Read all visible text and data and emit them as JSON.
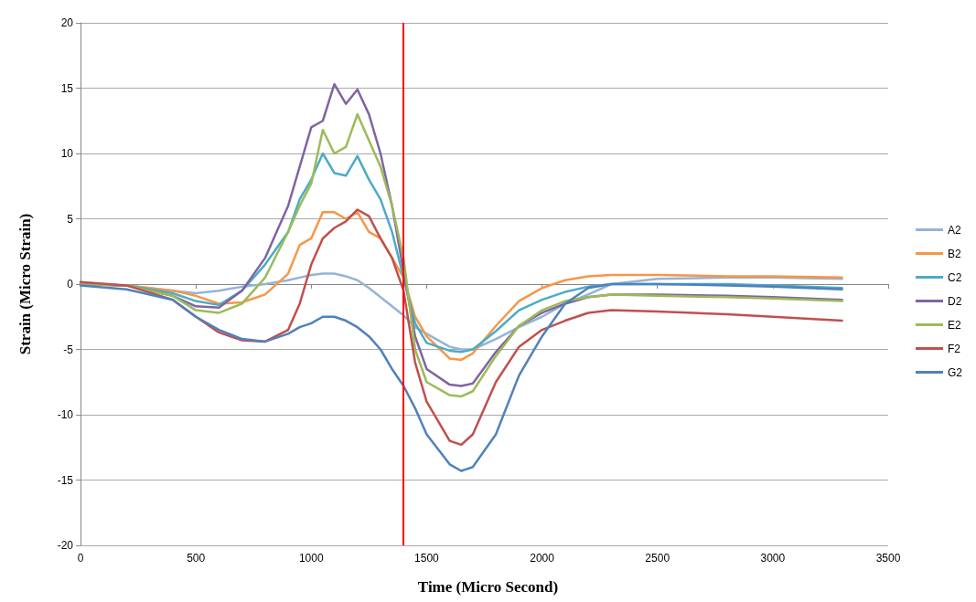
{
  "chart_data": {
    "type": "line",
    "xlabel": "Time (Micro Second)",
    "ylabel": "Strain (Micro Strain)",
    "x": [
      0,
      200,
      400,
      500,
      600,
      700,
      800,
      900,
      950,
      1000,
      1050,
      1100,
      1150,
      1200,
      1250,
      1300,
      1350,
      1400,
      1450,
      1500,
      1600,
      1650,
      1700,
      1800,
      1900,
      2000,
      2100,
      2200,
      2300,
      2500,
      2800,
      3000,
      3300
    ],
    "series": [
      {
        "name": "A2",
        "color": "#95b3d7",
        "values": [
          0,
          -0.1,
          -0.5,
          -0.7,
          -0.5,
          -0.2,
          0,
          0.3,
          0.5,
          0.7,
          0.8,
          0.8,
          0.6,
          0.3,
          -0.3,
          -1,
          -1.7,
          -2.4,
          -3.3,
          -3.8,
          -4.8,
          -5,
          -5,
          -4.2,
          -3.3,
          -2.5,
          -1.5,
          -0.8,
          0,
          0.4,
          0.5,
          0.5,
          0.4
        ]
      },
      {
        "name": "B2",
        "color": "#f79646",
        "values": [
          0,
          -0.1,
          -0.5,
          -0.9,
          -1.5,
          -1.4,
          -0.8,
          0.8,
          3,
          3.5,
          5.5,
          5.5,
          5,
          5.5,
          4,
          3.5,
          2,
          0.5,
          -2.5,
          -4,
          -5.7,
          -5.8,
          -5.3,
          -3.2,
          -1.3,
          -0.3,
          0.3,
          0.6,
          0.7,
          0.7,
          0.6,
          0.6,
          0.5
        ]
      },
      {
        "name": "C2",
        "color": "#4bacc6",
        "values": [
          0,
          -0.1,
          -0.7,
          -1.3,
          -1.6,
          -0.5,
          1.5,
          4,
          6.5,
          8,
          10,
          8.5,
          8.3,
          9.8,
          8,
          6.5,
          4,
          0.5,
          -3,
          -4.5,
          -5.1,
          -5.2,
          -5,
          -3.6,
          -2,
          -1.2,
          -0.6,
          -0.2,
          0,
          0,
          0,
          -0.1,
          -0.3
        ]
      },
      {
        "name": "D2",
        "color": "#8064a2",
        "values": [
          0,
          -0.1,
          -0.9,
          -1.7,
          -1.8,
          -0.5,
          2,
          6,
          9,
          12,
          12.5,
          15.3,
          13.8,
          14.9,
          13,
          10,
          6,
          1,
          -4,
          -6.5,
          -7.7,
          -7.8,
          -7.6,
          -5.2,
          -3.2,
          -2.2,
          -1.5,
          -1,
          -0.8,
          -0.8,
          -0.9,
          -1,
          -1.2
        ]
      },
      {
        "name": "E2",
        "color": "#9bbb59",
        "values": [
          0,
          -0.1,
          -0.9,
          -2,
          -2.2,
          -1.5,
          0.5,
          4,
          6,
          7.7,
          11.8,
          10,
          10.5,
          13,
          11,
          9,
          6,
          2,
          -5,
          -7.5,
          -8.5,
          -8.6,
          -8.2,
          -5.5,
          -3.2,
          -2,
          -1.3,
          -1,
          -0.8,
          -0.9,
          -1,
          -1.1,
          -1.3
        ]
      },
      {
        "name": "F2",
        "color": "#c0504d",
        "values": [
          0.15,
          -0.1,
          -1.2,
          -2.5,
          -3.7,
          -4.3,
          -4.4,
          -3.5,
          -1.5,
          1.5,
          3.5,
          4.3,
          4.8,
          5.7,
          5.2,
          3.5,
          2,
          -0.5,
          -6,
          -9,
          -12,
          -12.3,
          -11.5,
          -7.5,
          -4.8,
          -3.5,
          -2.8,
          -2.2,
          -2,
          -2.1,
          -2.3,
          -2.5,
          -2.8
        ]
      },
      {
        "name": "G2",
        "color": "#4f81bd",
        "values": [
          -0.1,
          -0.4,
          -1.2,
          -2.5,
          -3.5,
          -4.2,
          -4.4,
          -3.8,
          -3.3,
          -3,
          -2.5,
          -2.5,
          -2.8,
          -3.3,
          -4,
          -5,
          -6.5,
          -7.8,
          -9.5,
          -11.5,
          -13.8,
          -14.3,
          -14,
          -11.5,
          -7,
          -4,
          -1.5,
          -0.3,
          0,
          0,
          -0.1,
          -0.2,
          -0.4
        ]
      }
    ],
    "xlim": [
      0,
      3500
    ],
    "xticks": [
      0,
      500,
      1000,
      1500,
      2000,
      2500,
      3000,
      3500
    ],
    "ylim": [
      -20,
      20
    ],
    "yticks": [
      -20,
      -15,
      -10,
      -5,
      0,
      5,
      10,
      15,
      20
    ],
    "ref_lines": [
      {
        "axis": "x",
        "value": 1400,
        "color": "#ff0000"
      }
    ],
    "grid": "y",
    "legend": "right",
    "marker": "none",
    "line_style": "solid"
  }
}
